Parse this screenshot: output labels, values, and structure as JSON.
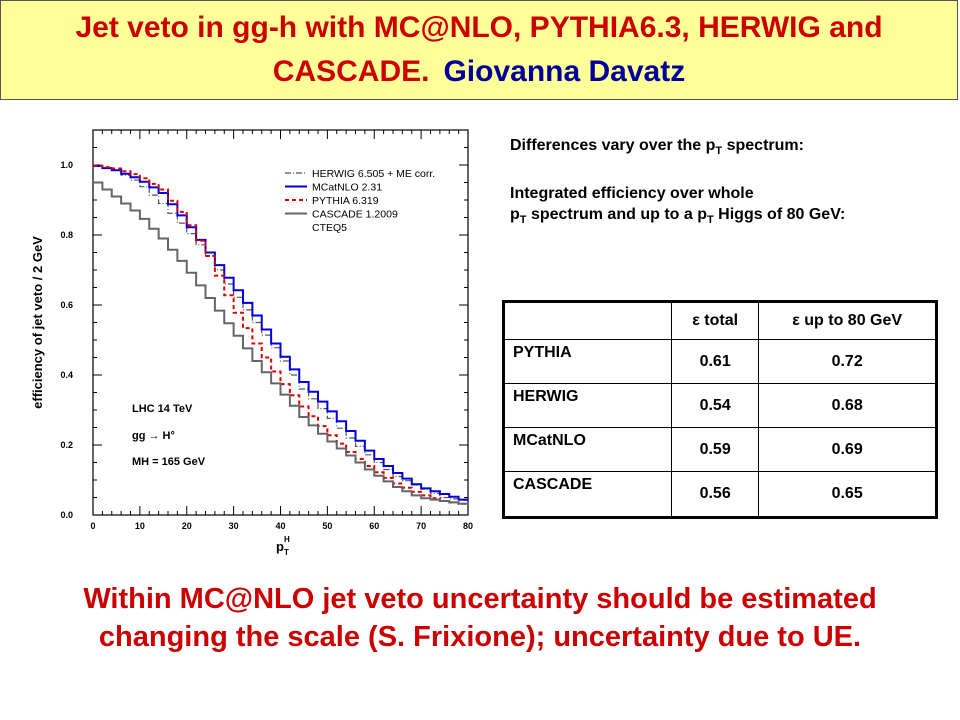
{
  "title": {
    "line1": "Jet veto in gg-h with MC@NLO, PYTHIA6.3, HERWIG and",
    "line2_main": "CASCADE.",
    "line2_author": "Giovanna Davatz"
  },
  "notes": {
    "line1_pre": "Differences vary over the p",
    "line1_sub": "T",
    "line1_post": " spectrum:",
    "line2": "Integrated efficiency over whole",
    "line3_a": "p",
    "line3_sub1": "T",
    "line3_b": " spectrum and up to a p",
    "line3_sub2": "T",
    "line3_c": " Higgs of 80 GeV:"
  },
  "table": {
    "headers": [
      "",
      "ε total",
      "ε up to 80 GeV"
    ],
    "rows": [
      {
        "name": "PYTHIA",
        "total": "0.61",
        "up80": "0.72"
      },
      {
        "name": "HERWIG",
        "total": "0.54",
        "up80": "0.68"
      },
      {
        "name": "MCatNLO",
        "total": "0.59",
        "up80": "0.69"
      },
      {
        "name": "CASCADE",
        "total": "0.56",
        "up80": "0.65"
      }
    ]
  },
  "bottom_text": {
    "line1": "Within MC@NLO jet veto uncertainty should be estimated",
    "line2": "changing the scale (S. Frixione); uncertainty due to UE."
  },
  "chart_data": {
    "type": "line",
    "xlabel": "pT H",
    "ylabel": "efficiency of jet veto / 2 GeV",
    "xlim": [
      0,
      80
    ],
    "ylim": [
      0,
      1.1
    ],
    "xticks": [
      "0",
      "10",
      "20",
      "30",
      "40",
      "50",
      "60",
      "70",
      "80"
    ],
    "yticks": [
      "0.0",
      "0.2",
      "0.4",
      "0.6",
      "0.8",
      "1.0"
    ],
    "annotations": [
      "LHC 14 TeV",
      "gg → H°",
      "MH = 165 GeV"
    ],
    "legend_extra": "CTEQ5",
    "series": [
      {
        "name": "HERWIG 6.505 + ME corr.",
        "color": "#555555",
        "style": "dashdot",
        "x": [
          0,
          5,
          10,
          15,
          20,
          25,
          30,
          35,
          40,
          45,
          50,
          55,
          60,
          65,
          70,
          75,
          80
        ],
        "y": [
          1.0,
          0.985,
          0.95,
          0.89,
          0.82,
          0.74,
          0.64,
          0.55,
          0.46,
          0.36,
          0.29,
          0.22,
          0.16,
          0.11,
          0.08,
          0.05,
          0.04
        ]
      },
      {
        "name": "MCatNLO 2.31",
        "color": "#0000dd",
        "style": "solid",
        "x": [
          0,
          5,
          10,
          15,
          20,
          25,
          30,
          35,
          40,
          45,
          50,
          55,
          60,
          65,
          70,
          75,
          80
        ],
        "y": [
          1.0,
          0.985,
          0.96,
          0.92,
          0.84,
          0.75,
          0.66,
          0.57,
          0.47,
          0.38,
          0.31,
          0.24,
          0.17,
          0.12,
          0.08,
          0.06,
          0.04
        ]
      },
      {
        "name": "PYTHIA 6.319",
        "color": "#dd0000",
        "style": "dashed",
        "x": [
          0,
          5,
          10,
          15,
          20,
          25,
          30,
          35,
          40,
          45,
          50,
          55,
          60,
          65,
          70,
          75,
          80
        ],
        "y": [
          1.0,
          0.99,
          0.97,
          0.93,
          0.85,
          0.74,
          0.6,
          0.49,
          0.39,
          0.31,
          0.24,
          0.18,
          0.13,
          0.09,
          0.06,
          0.04,
          0.03
        ]
      },
      {
        "name": "CASCADE 1.2009",
        "color": "#666666",
        "style": "solid",
        "x": [
          0,
          5,
          10,
          15,
          20,
          25,
          30,
          35,
          40,
          45,
          50,
          55,
          60,
          65,
          70,
          75,
          80
        ],
        "y": [
          0.96,
          0.91,
          0.86,
          0.79,
          0.71,
          0.62,
          0.53,
          0.44,
          0.36,
          0.28,
          0.22,
          0.17,
          0.12,
          0.08,
          0.05,
          0.04,
          0.03
        ]
      }
    ]
  }
}
